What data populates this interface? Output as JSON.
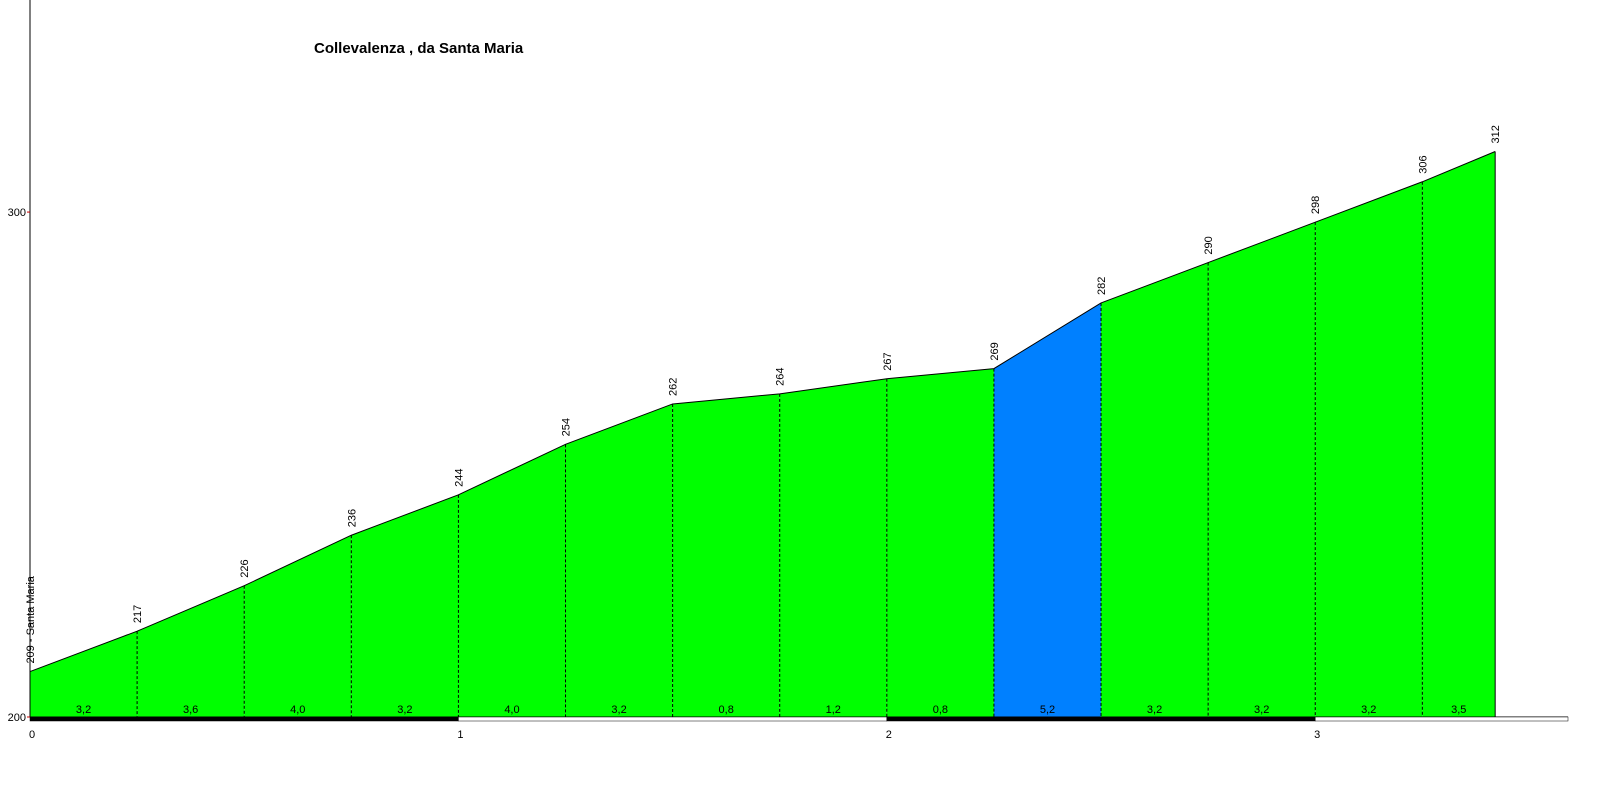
{
  "chart_data": {
    "type": "area",
    "title": "Collevalenza , da Santa Maria",
    "x": [
      0,
      0.25,
      0.5,
      0.75,
      1,
      1.25,
      1.5,
      1.75,
      2,
      2.25,
      2.5,
      2.75,
      3,
      3.25,
      3.42
    ],
    "series": [
      {
        "values": [
          209,
          217,
          226,
          236,
          244,
          254,
          262,
          264,
          267,
          269,
          282,
          290,
          298,
          306,
          312
        ],
        "value_labels": [
          "209 - Santa Maria",
          "217",
          "226",
          "236",
          "244",
          "254",
          "262",
          "264",
          "267",
          "269",
          "282",
          "290",
          "298",
          "306",
          "312"
        ]
      }
    ],
    "gradients": {
      "values": [
        3.2,
        3.6,
        4.0,
        3.2,
        4.0,
        3.2,
        0.8,
        1.2,
        0.8,
        5.2,
        3.2,
        3.2,
        3.2,
        3.5
      ],
      "value_labels": [
        "3,2",
        "3,6",
        "4,0",
        "3,2",
        "4,0",
        "3,2",
        "0,8",
        "1,2",
        "0,8",
        "5,2",
        "3,2",
        "3,2",
        "3,2",
        "3,5"
      ],
      "colors": [
        "#00ff00",
        "#00ff00",
        "#00ff00",
        "#00ff00",
        "#00ff00",
        "#00ff00",
        "#00ff00",
        "#00ff00",
        "#00ff00",
        "#0080ff",
        "#00ff00",
        "#00ff00",
        "#00ff00",
        "#00ff00"
      ]
    },
    "xlim": [
      0,
      3.59
    ],
    "ylim": [
      200,
      342
    ],
    "xticks": [
      0,
      1,
      2,
      3
    ],
    "yticks": [
      200,
      300
    ],
    "grid": false
  }
}
